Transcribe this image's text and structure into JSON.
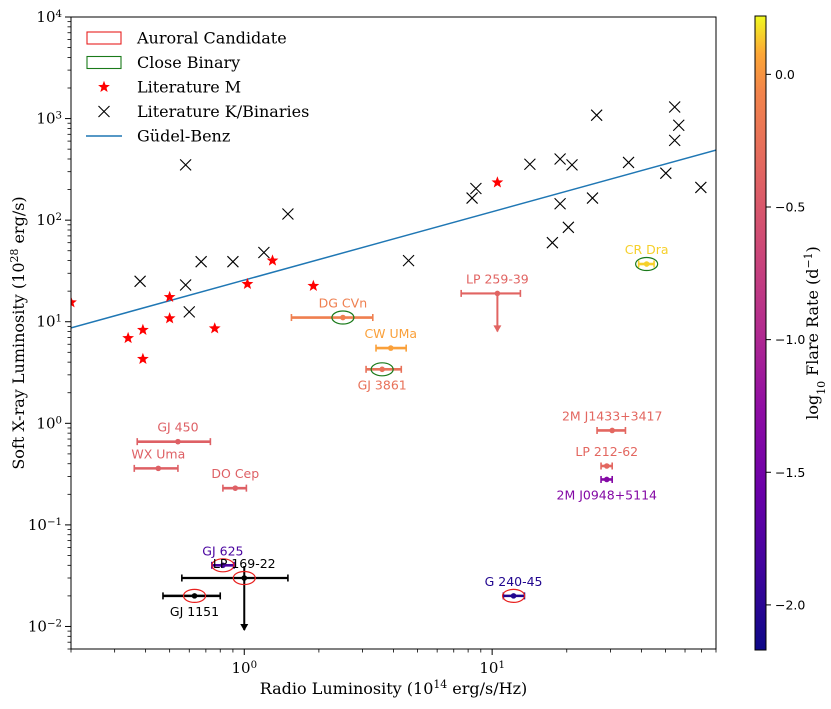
{
  "chart_data": {
    "type": "scatter",
    "xlabel_main": "Radio Luminosity (10",
    "xlabel_exp": "14",
    "xlabel_tail": " erg/s/Hz)",
    "ylabel_main": "Soft X-ray Luminosity (10",
    "ylabel_exp": "28",
    "ylabel_tail": " erg/s)",
    "x_scale": "log",
    "y_scale": "log",
    "xlim": [
      0.2,
      80
    ],
    "ylim": [
      0.006,
      10000
    ],
    "x_ticks": [
      {
        "value": 1,
        "base": "10",
        "exp": "0"
      },
      {
        "value": 10,
        "base": "10",
        "exp": "1"
      }
    ],
    "y_ticks": [
      {
        "value": 0.01,
        "base": "10",
        "exp": "−2"
      },
      {
        "value": 0.1,
        "base": "10",
        "exp": "−1"
      },
      {
        "value": 1,
        "base": "10",
        "exp": "0"
      },
      {
        "value": 10,
        "base": "10",
        "exp": "1"
      },
      {
        "value": 100,
        "base": "10",
        "exp": "2"
      },
      {
        "value": 1000,
        "base": "10",
        "exp": "3"
      },
      {
        "value": 10000,
        "base": "10",
        "exp": "4"
      }
    ],
    "grid": false,
    "legend_position": "top-left",
    "legend": [
      {
        "label": "Auroral Candidate",
        "marker": "open-ellipse",
        "color": "#e8201e"
      },
      {
        "label": "Close Binary",
        "marker": "open-ellipse",
        "color": "#1a7a1a"
      },
      {
        "label": "Literature M",
        "marker": "star",
        "color": "#ff0000"
      },
      {
        "label": "Literature K/Binaries",
        "marker": "x",
        "color": "#000000"
      },
      {
        "label": "Güdel-Benz",
        "marker": "line",
        "color": "#1f77b4"
      }
    ],
    "colorbar": {
      "label_main": "log",
      "label_sub": "10",
      "label_tail": " Flare Rate (d",
      "label_exp": "−1",
      "label_close": ")",
      "min": -2.17,
      "max": 0.22,
      "ticks": [
        {
          "value": 0.0,
          "label": "0.0"
        },
        {
          "value": -0.5,
          "label": "−0.5"
        },
        {
          "value": -1.0,
          "label": "−1.0"
        },
        {
          "value": -1.5,
          "label": "−1.5"
        },
        {
          "value": -2.0,
          "label": "−2.0"
        }
      ]
    },
    "gudel_benz_line": {
      "x": [
        0.2,
        80
      ],
      "y": [
        8.7,
        490
      ]
    },
    "literature_m": [
      {
        "x": 0.2,
        "y": 15.5
      },
      {
        "x": 0.34,
        "y": 6.9
      },
      {
        "x": 0.39,
        "y": 8.3
      },
      {
        "x": 0.39,
        "y": 4.3
      },
      {
        "x": 0.5,
        "y": 17.5
      },
      {
        "x": 0.5,
        "y": 10.8
      },
      {
        "x": 0.76,
        "y": 8.6
      },
      {
        "x": 1.03,
        "y": 23.5
      },
      {
        "x": 1.3,
        "y": 40
      },
      {
        "x": 1.9,
        "y": 22.5
      },
      {
        "x": 10.5,
        "y": 235
      }
    ],
    "literature_k": [
      {
        "x": 0.38,
        "y": 25
      },
      {
        "x": 0.58,
        "y": 23
      },
      {
        "x": 0.58,
        "y": 350
      },
      {
        "x": 0.6,
        "y": 12.5
      },
      {
        "x": 0.67,
        "y": 39
      },
      {
        "x": 0.9,
        "y": 39
      },
      {
        "x": 1.2,
        "y": 48
      },
      {
        "x": 1.5,
        "y": 115
      },
      {
        "x": 4.6,
        "y": 40
      },
      {
        "x": 8.3,
        "y": 165
      },
      {
        "x": 8.6,
        "y": 205
      },
      {
        "x": 14.2,
        "y": 355
      },
      {
        "x": 17.5,
        "y": 60
      },
      {
        "x": 18.8,
        "y": 145
      },
      {
        "x": 18.8,
        "y": 400
      },
      {
        "x": 20.3,
        "y": 85
      },
      {
        "x": 21,
        "y": 350
      },
      {
        "x": 25.4,
        "y": 165
      },
      {
        "x": 26.4,
        "y": 1080
      },
      {
        "x": 35.5,
        "y": 370
      },
      {
        "x": 50.2,
        "y": 290
      },
      {
        "x": 54.5,
        "y": 1300
      },
      {
        "x": 54.5,
        "y": 610
      },
      {
        "x": 56.6,
        "y": 860
      },
      {
        "x": 69.5,
        "y": 210
      }
    ],
    "sources": [
      {
        "name": "CR Dra",
        "x": 42,
        "y": 37,
        "xerr": [
          39,
          45
        ],
        "log_flare": 0.15,
        "marker": "close-binary",
        "label_pos": "above"
      },
      {
        "name": "LP 259-39",
        "x": 10.5,
        "y": 19,
        "xerr": [
          7.5,
          13
        ],
        "log_flare": -0.38,
        "upper_limit": "y",
        "label_pos": "above"
      },
      {
        "name": "DG CVn",
        "x": 2.5,
        "y": 11,
        "xerr": [
          1.55,
          3.3
        ],
        "log_flare": -0.12,
        "marker": "close-binary",
        "label_pos": "above"
      },
      {
        "name": "CW UMa",
        "x": 3.9,
        "y": 5.5,
        "xerr": [
          3.4,
          4.5
        ],
        "log_flare": 0.05,
        "label_pos": "above"
      },
      {
        "name": "GJ 3861",
        "x": 3.6,
        "y": 3.4,
        "xerr": [
          3.1,
          4.3
        ],
        "log_flare": -0.25,
        "marker": "close-binary",
        "label_pos": "below"
      },
      {
        "name": "GJ 450",
        "x": 0.54,
        "y": 0.66,
        "xerr": [
          0.37,
          0.73
        ],
        "log_flare": -0.42,
        "label_pos": "above"
      },
      {
        "name": "WX Uma",
        "x": 0.45,
        "y": 0.36,
        "xerr": [
          0.36,
          0.54
        ],
        "log_flare": -0.42,
        "label_pos": "above"
      },
      {
        "name": "DO Cep",
        "x": 0.92,
        "y": 0.23,
        "xerr": [
          0.82,
          1.02
        ],
        "log_flare": -0.42,
        "label_pos": "above"
      },
      {
        "name": "2M J1433+3417",
        "x": 30.5,
        "y": 0.85,
        "xerr": [
          26.5,
          34.5
        ],
        "log_flare": -0.35,
        "label_pos": "above"
      },
      {
        "name": "LP 212-62",
        "x": 29,
        "y": 0.38,
        "xerr": [
          27.5,
          30.5
        ],
        "log_flare": -0.35,
        "label_pos": "above"
      },
      {
        "name": "2M J0948+5114",
        "x": 29,
        "y": 0.28,
        "xerr": [
          27.5,
          30.5
        ],
        "log_flare": -1.35,
        "label_pos": "below"
      },
      {
        "name": "GJ 625",
        "x": 0.82,
        "y": 0.04,
        "xerr": [
          0.74,
          0.91
        ],
        "log_flare": -1.8,
        "marker": "auroral",
        "label_pos": "above"
      },
      {
        "name": "LP 169-22",
        "x": 1.0,
        "y": 0.03,
        "xerr": [
          0.56,
          1.5
        ],
        "log_flare": null,
        "marker": "auroral",
        "upper_limit": "xy",
        "label_pos": "above"
      },
      {
        "name": "GJ 1151",
        "x": 0.63,
        "y": 0.02,
        "xerr": [
          0.47,
          0.8
        ],
        "log_flare": null,
        "marker": "auroral",
        "label_pos": "below"
      },
      {
        "name": "G 240-45",
        "x": 12.2,
        "y": 0.02,
        "xerr": [
          11.1,
          13.5
        ],
        "log_flare": -2.05,
        "marker": "auroral",
        "label_pos": "above"
      }
    ]
  }
}
